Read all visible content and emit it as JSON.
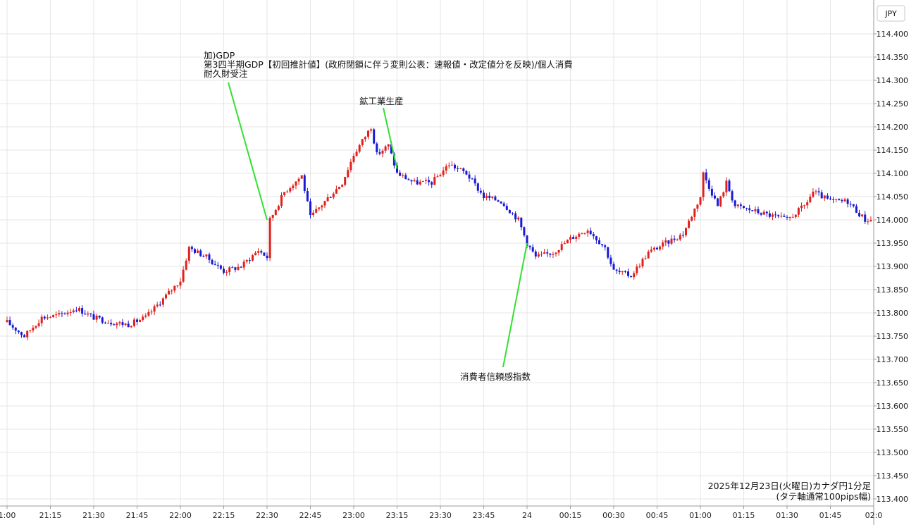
{
  "currency_button": "JPY",
  "footer": {
    "line1": "2025年12月23日(火曜日)カナダ円1分足",
    "line2": "(タテ軸通常100pips幅)"
  },
  "chart_data": {
    "type": "candlestick",
    "x_tick_labels": [
      "1:00",
      "21:15",
      "21:30",
      "21:45",
      "22:00",
      "22:15",
      "22:30",
      "22:45",
      "23:00",
      "23:15",
      "23:30",
      "23:45",
      "24",
      "00:15",
      "00:30",
      "00:45",
      "01:00",
      "01:15",
      "01:30",
      "01:45",
      "02:0"
    ],
    "ylim": [
      113.4,
      114.4
    ],
    "y_ticks": [
      "114.400",
      "114.350",
      "114.300",
      "114.250",
      "114.200",
      "114.150",
      "114.100",
      "114.050",
      "114.000",
      "113.950",
      "113.900",
      "113.850",
      "113.800",
      "113.750",
      "113.700",
      "113.650",
      "113.600",
      "113.550",
      "113.500",
      "113.450",
      "113.400"
    ],
    "grid": true,
    "up_color": "#e0201c",
    "down_color": "#1a1ad6",
    "annotation_line_color": "#33e033",
    "annotations": [
      {
        "lines": [
          "加)GDP",
          "第3四半期GDP【初回推計値】(政府閉鎖に伴う変則公表：速報値・改定値分を反映)/個人消費",
          "耐久財受注"
        ],
        "time": "22:30",
        "price": 114.0
      },
      {
        "lines": [
          "鉱工業生産"
        ],
        "time": "23:15",
        "price": 114.11
      },
      {
        "lines": [
          "消費者信頼感指数"
        ],
        "time": "24:00",
        "price": 113.95
      }
    ],
    "close_path": [
      [
        "21:00",
        113.78
      ],
      [
        "21:06",
        113.75
      ],
      [
        "21:12",
        113.79
      ],
      [
        "21:18",
        113.795
      ],
      [
        "21:24",
        113.81
      ],
      [
        "21:30",
        113.79
      ],
      [
        "21:36",
        113.78
      ],
      [
        "21:42",
        113.775
      ],
      [
        "21:48",
        113.79
      ],
      [
        "21:54",
        113.83
      ],
      [
        "22:00",
        113.87
      ],
      [
        "22:03",
        113.94
      ],
      [
        "22:09",
        113.92
      ],
      [
        "22:15",
        113.89
      ],
      [
        "22:21",
        113.9
      ],
      [
        "22:27",
        113.935
      ],
      [
        "22:30",
        113.92
      ],
      [
        "22:31",
        114.0
      ],
      [
        "22:36",
        114.06
      ],
      [
        "22:42",
        114.095
      ],
      [
        "22:45",
        114.005
      ],
      [
        "22:50",
        114.04
      ],
      [
        "22:56",
        114.08
      ],
      [
        "23:00",
        114.14
      ],
      [
        "23:04",
        114.18
      ],
      [
        "23:06",
        114.2
      ],
      [
        "23:08",
        114.14
      ],
      [
        "23:12",
        114.16
      ],
      [
        "23:15",
        114.1
      ],
      [
        "23:21",
        114.08
      ],
      [
        "23:27",
        114.08
      ],
      [
        "23:33",
        114.12
      ],
      [
        "23:39",
        114.1
      ],
      [
        "23:45",
        114.05
      ],
      [
        "23:51",
        114.04
      ],
      [
        "23:57",
        114.0
      ],
      [
        "24:00",
        113.95
      ],
      [
        "24:03",
        113.92
      ],
      [
        "24:09",
        113.93
      ],
      [
        "24:15",
        113.96
      ],
      [
        "24:21",
        113.98
      ],
      [
        "24:27",
        113.94
      ],
      [
        "24:30",
        113.89
      ],
      [
        "24:36",
        113.88
      ],
      [
        "24:42",
        113.93
      ],
      [
        "24:48",
        113.95
      ],
      [
        "24:54",
        113.97
      ],
      [
        "25:00",
        114.05
      ],
      [
        "25:01",
        114.1
      ],
      [
        "25:06",
        114.03
      ],
      [
        "25:09",
        114.08
      ],
      [
        "25:12",
        114.03
      ],
      [
        "25:18",
        114.02
      ],
      [
        "25:24",
        114.01
      ],
      [
        "25:30",
        114.0
      ],
      [
        "25:36",
        114.03
      ],
      [
        "25:39",
        114.06
      ],
      [
        "25:45",
        114.04
      ],
      [
        "25:51",
        114.04
      ],
      [
        "25:57",
        114.0
      ],
      [
        "26:00",
        114.0
      ]
    ]
  }
}
